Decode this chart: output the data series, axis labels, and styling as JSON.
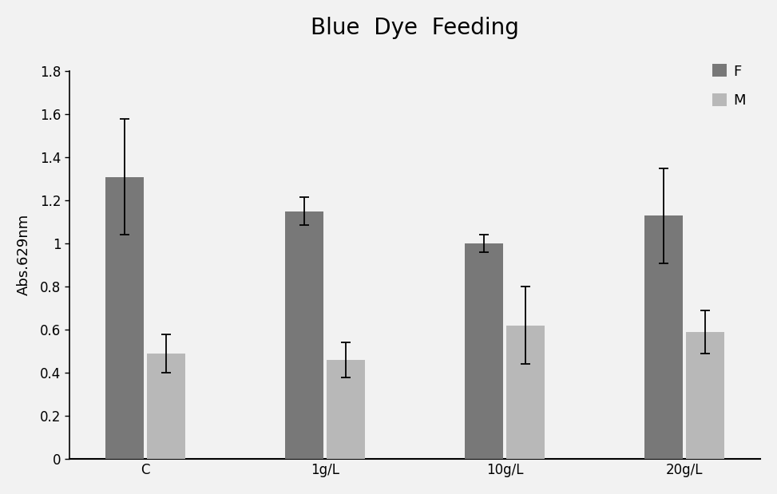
{
  "title": "Blue  Dye  Feeding",
  "ylabel": "Abs.629nm",
  "categories": [
    "C",
    "1g/L",
    "10g/L",
    "20g/L"
  ],
  "series": {
    "F": {
      "values": [
        1.31,
        1.15,
        1.0,
        1.13
      ],
      "errors": [
        0.27,
        0.065,
        0.04,
        0.22
      ],
      "color": "#787878"
    },
    "M": {
      "values": [
        0.49,
        0.46,
        0.62,
        0.59
      ],
      "errors": [
        0.09,
        0.08,
        0.18,
        0.1
      ],
      "color": "#b8b8b8"
    }
  },
  "ylim": [
    0,
    1.9
  ],
  "yticks": [
    0,
    0.2,
    0.4,
    0.6,
    0.8,
    1.0,
    1.2,
    1.4,
    1.6,
    1.8
  ],
  "ytick_labels": [
    "0",
    "0.2",
    "0.4",
    "0.6",
    "0.8",
    "1",
    "1.2",
    "1.4",
    "1.6",
    "1.8"
  ],
  "bar_width": 0.28,
  "group_positions": [
    0.5,
    1.8,
    3.1,
    4.4
  ],
  "legend_labels": [
    "F",
    "M"
  ],
  "title_fontsize": 20,
  "axis_fontsize": 13,
  "tick_fontsize": 12,
  "legend_fontsize": 13,
  "background_color": "#f2f2f2",
  "plot_bg_color": "#f2f2f2"
}
